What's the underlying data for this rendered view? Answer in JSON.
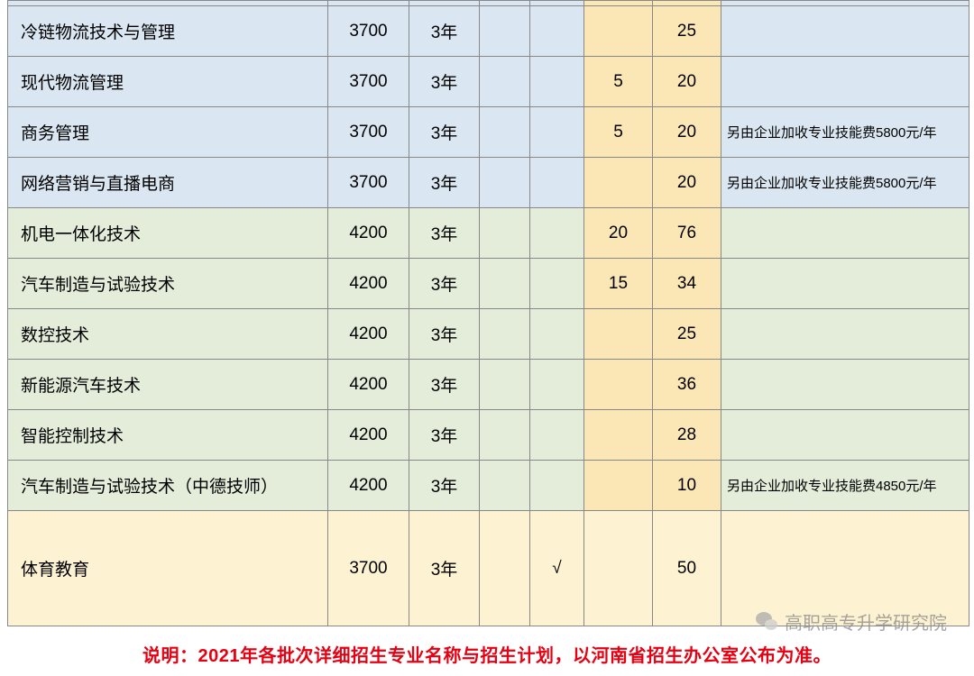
{
  "columns": {
    "widths": [
      355,
      90,
      78,
      56,
      60,
      76,
      76,
      275
    ],
    "highlight_indices": [
      5,
      6
    ]
  },
  "rows": [
    {
      "class": "sliver row-blue",
      "cells": [
        "",
        "",
        "",
        "",
        "",
        "",
        "",
        ""
      ]
    },
    {
      "class": "row-blue",
      "cells": [
        "冷链物流技术与管理",
        "3700",
        "3年",
        "",
        "",
        "",
        "25",
        ""
      ]
    },
    {
      "class": "row-blue",
      "cells": [
        "现代物流管理",
        "3700",
        "3年",
        "",
        "",
        "5",
        "20",
        ""
      ]
    },
    {
      "class": "row-blue",
      "cells": [
        "商务管理",
        "3700",
        "3年",
        "",
        "",
        "5",
        "20",
        "另由企业加收专业技能费5800元/年"
      ]
    },
    {
      "class": "row-blue",
      "cells": [
        "网络营销与直播电商",
        "3700",
        "3年",
        "",
        "",
        "",
        "20",
        "另由企业加收专业技能费5800元/年"
      ]
    },
    {
      "class": "row-green",
      "cells": [
        "机电一体化技术",
        "4200",
        "3年",
        "",
        "",
        "20",
        "76",
        ""
      ]
    },
    {
      "class": "row-green",
      "cells": [
        "汽车制造与试验技术",
        "4200",
        "3年",
        "",
        "",
        "15",
        "34",
        ""
      ]
    },
    {
      "class": "row-green",
      "cells": [
        "数控技术",
        "4200",
        "3年",
        "",
        "",
        "",
        "25",
        ""
      ]
    },
    {
      "class": "row-green",
      "cells": [
        "新能源汽车技术",
        "4200",
        "3年",
        "",
        "",
        "",
        "36",
        ""
      ]
    },
    {
      "class": "row-green",
      "cells": [
        "智能控制技术",
        "4200",
        "3年",
        "",
        "",
        "",
        "28",
        ""
      ]
    },
    {
      "class": "row-green",
      "cells": [
        "汽车制造与试验技术（中德技师）",
        "4200",
        "3年",
        "",
        "",
        "",
        "10",
        "另由企业加收专业技能费4850元/年"
      ]
    },
    {
      "class": "row-cream row-big",
      "cells": [
        "体育教育",
        "3700",
        "3年",
        "",
        "√",
        "",
        "50",
        ""
      ]
    }
  ],
  "footer": "说明：2021年各批次详细招生专业名称与招生计划，以河南省招生办公室公布为准。",
  "watermark": "高职高专升学研究院",
  "colors": {
    "row_blue": "#dae6f1",
    "row_green": "#e3edda",
    "row_cream": "#fdf2d1",
    "col_highlight": "#fbe6b6",
    "border": "#888888",
    "footer_text": "#e60012",
    "text": "#000000",
    "watermark_text": "#888888"
  },
  "typography": {
    "body_fontsize": 19,
    "remark_fontsize": 15,
    "footer_fontsize": 20,
    "watermark_fontsize": 20
  }
}
